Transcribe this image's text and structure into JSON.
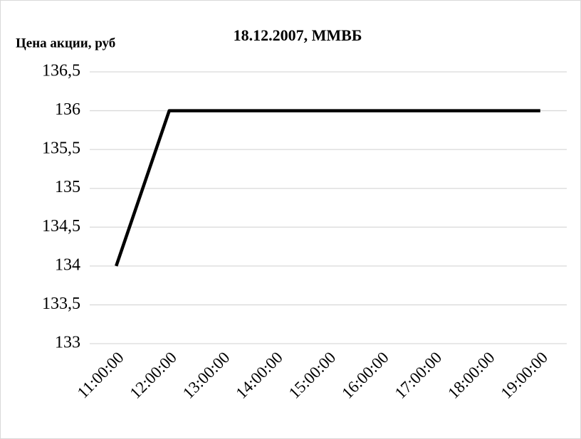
{
  "chart_data": {
    "type": "line",
    "title": "18.12.2007, ММВБ",
    "y_label": "Цена акции, руб",
    "categories": [
      "11:00:00",
      "12:00:00",
      "13:00:00",
      "14:00:00",
      "15:00:00",
      "16:00:00",
      "17:00:00",
      "18:00:00",
      "19:00:00"
    ],
    "values": [
      134,
      136,
      136,
      136,
      136,
      136,
      136,
      136,
      136
    ],
    "color": "#000000",
    "ylim": [
      133,
      136.5
    ],
    "yticks": [
      133,
      {
        "value": 133.5,
        "label": "133,5"
      },
      134,
      {
        "value": 134.5,
        "label": "134,5"
      },
      135,
      {
        "value": 135.5,
        "label": "135,5"
      },
      136,
      {
        "value": 136.5,
        "label": "136,5"
      }
    ],
    "grid": true
  }
}
